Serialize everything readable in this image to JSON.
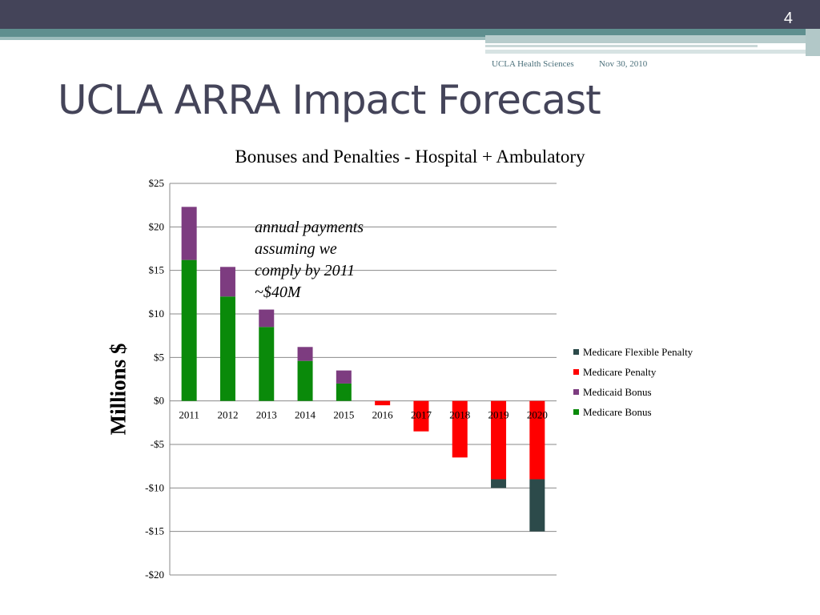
{
  "slide": {
    "number": "4",
    "footer_org": "UCLA Health Sciences",
    "footer_date": "Nov 30, 2010",
    "title": "UCLA ARRA Impact Forecast"
  },
  "chart_data": {
    "type": "bar",
    "stacked": true,
    "title": "Bonuses and Penalties - Hospital + Ambulatory",
    "ylabel": "Millions $",
    "xlabel": "",
    "categories": [
      "2011",
      "2012",
      "2013",
      "2014",
      "2015",
      "2016",
      "2017",
      "2018",
      "2019",
      "2020"
    ],
    "series": [
      {
        "name": "Medicare Bonus",
        "color": "#0a8a0a",
        "values": [
          16.2,
          12.0,
          8.5,
          4.6,
          2.0,
          0,
          0,
          0,
          0,
          0
        ]
      },
      {
        "name": "Medicaid Bonus",
        "color": "#7d3c80",
        "values": [
          6.1,
          3.4,
          2.0,
          1.6,
          1.5,
          0,
          0,
          0,
          0,
          0
        ]
      },
      {
        "name": "Medicare Penalty",
        "color": "#ff0000",
        "values": [
          0,
          0,
          0,
          0,
          0,
          -0.5,
          -3.5,
          -6.5,
          -9.0,
          -9.0
        ]
      },
      {
        "name": "Medicare Flexible Penalty",
        "color": "#2c4a4a",
        "values": [
          0,
          0,
          0,
          0,
          0,
          0,
          0,
          0,
          -1.0,
          -6.0
        ]
      }
    ],
    "ylim": [
      -20,
      25
    ],
    "yticks": [
      25,
      20,
      15,
      10,
      5,
      0,
      -5,
      -10,
      -15,
      -20
    ],
    "ytick_labels": [
      "$25",
      "$20",
      "$15",
      "$10",
      "$5",
      "$0",
      "-$5",
      "-$10",
      "-$15",
      "-$20"
    ],
    "legend_order": [
      "Medicare Flexible Penalty",
      "Medicare Penalty",
      "Medicaid Bonus",
      "Medicare Bonus"
    ],
    "legend_position": "right",
    "grid": true,
    "annotation": [
      "annual payments",
      "assuming we",
      "comply by 2011",
      "~$40M"
    ]
  }
}
